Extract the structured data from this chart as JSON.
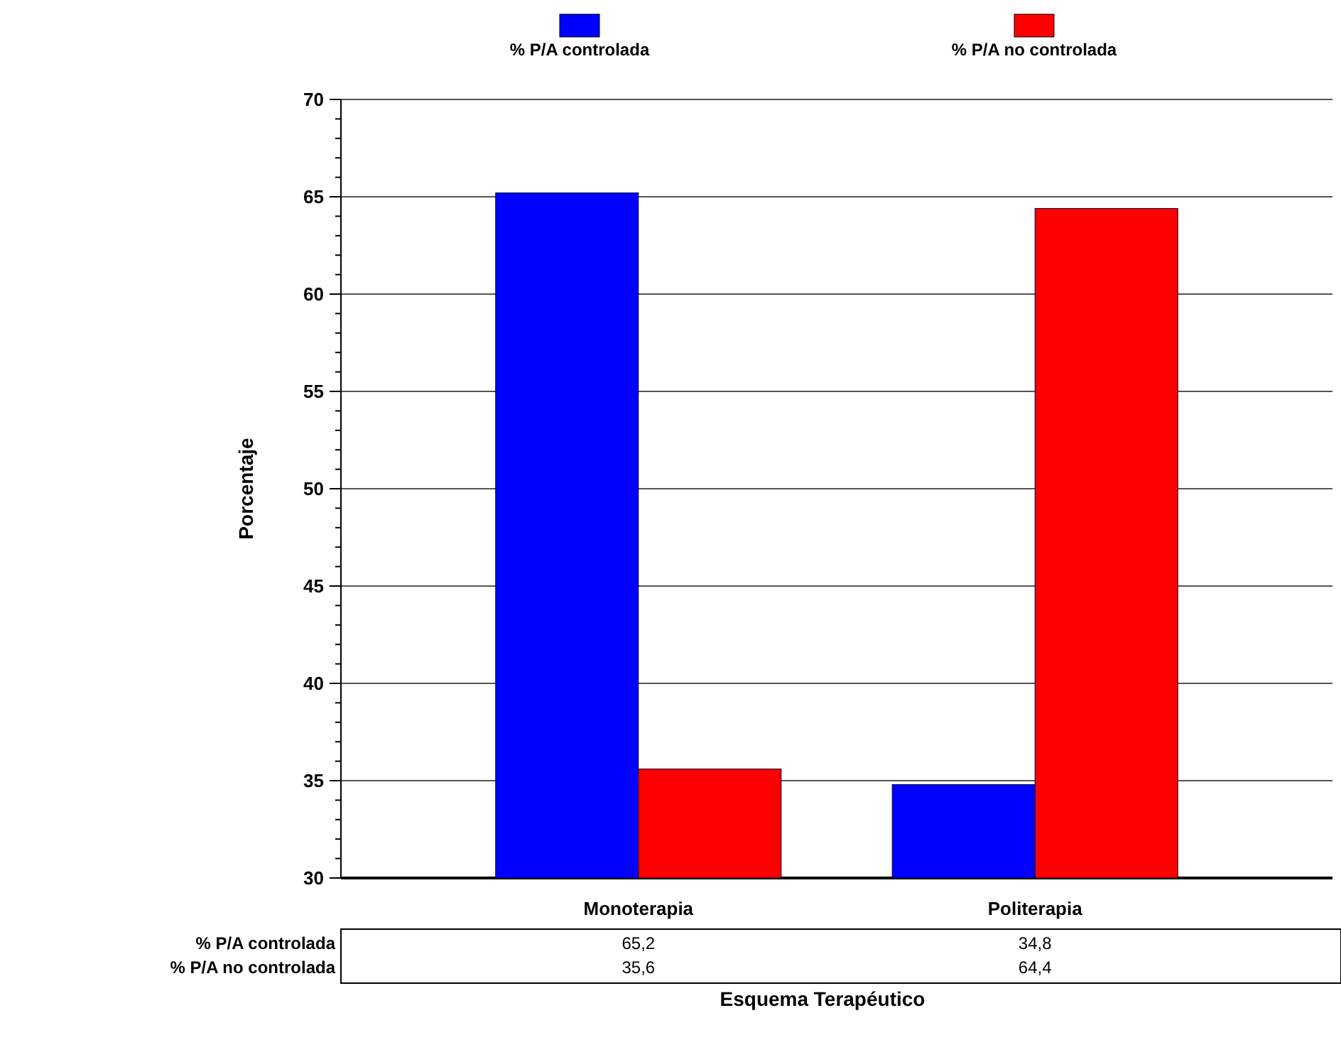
{
  "chart_data": {
    "type": "bar",
    "xlabel": "Esquema Terapéutico",
    "ylabel": "Porcentaje",
    "categories": [
      "Monoterapia",
      "Politerapia"
    ],
    "series": [
      {
        "name": "% P/A controlada",
        "color": "#0000ff",
        "values": [
          65.2,
          34.8
        ],
        "value_labels": [
          "65,2",
          "34,8"
        ]
      },
      {
        "name": "% P/A no controlada",
        "color": "#ff0000",
        "values": [
          35.6,
          64.4
        ],
        "value_labels": [
          "35,6",
          "64,4"
        ]
      }
    ],
    "ylim": [
      30,
      70
    ],
    "yticks": [
      30,
      35,
      40,
      45,
      50,
      55,
      60,
      65,
      70
    ],
    "grid": "y",
    "legend": "top"
  }
}
